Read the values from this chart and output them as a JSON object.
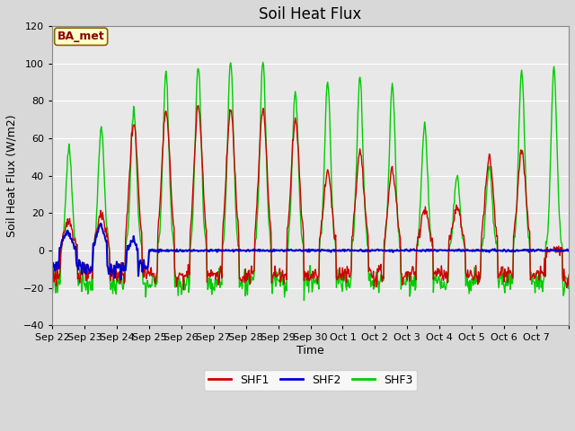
{
  "title": "Soil Heat Flux",
  "ylabel": "Soil Heat Flux (W/m2)",
  "xlabel": "Time",
  "annotation": "BA_met",
  "ylim": [
    -40,
    120
  ],
  "yticks": [
    -40,
    -20,
    0,
    20,
    40,
    60,
    80,
    100,
    120
  ],
  "series": {
    "SHF1": {
      "color": "#cc0000",
      "linewidth": 1.0
    },
    "SHF2": {
      "color": "#0000cc",
      "linewidth": 1.5
    },
    "SHF3": {
      "color": "#00cc00",
      "linewidth": 1.0
    }
  },
  "legend": [
    {
      "label": "SHF1",
      "color": "#cc0000"
    },
    {
      "label": "SHF2",
      "color": "#0000cc"
    },
    {
      "label": "SHF3",
      "color": "#00cc00"
    }
  ],
  "xtick_labels": [
    "Sep 22",
    "Sep 23",
    "Sep 24",
    "Sep 25",
    "Sep 26",
    "Sep 27",
    "Sep 28",
    "Sep 29",
    "Sep 30",
    "Oct 1",
    "Oct 2",
    "Oct 3",
    "Oct 4",
    "Oct 5",
    "Oct 6",
    "Oct 7"
  ],
  "bg_color": "#d8d8d8",
  "plot_bg": "#e8e8e8",
  "title_fontsize": 12,
  "axis_label_fontsize": 9,
  "tick_fontsize": 8,
  "shf1_peaks": [
    16,
    20,
    68,
    75,
    77,
    75,
    75,
    70,
    42,
    52,
    43,
    22,
    23,
    50,
    53,
    0
  ],
  "shf3_peaks": [
    55,
    66,
    75,
    95,
    100,
    101,
    101,
    85,
    91,
    93,
    88,
    67,
    40,
    45,
    96,
    98
  ]
}
